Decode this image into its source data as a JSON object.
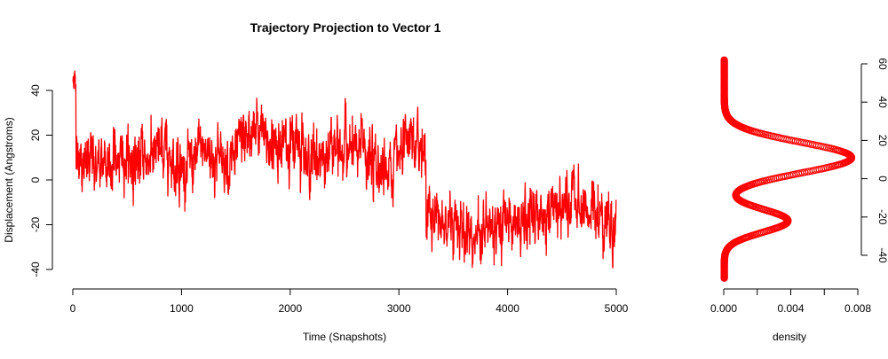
{
  "chart_data": [
    {
      "type": "line",
      "title": "Trajectory Projection to Vector 1",
      "xlabel": "Time (Snapshots)",
      "ylabel": "Displacement (Angstroms)",
      "xlim": [
        0,
        5000
      ],
      "ylim": [
        -40,
        40
      ],
      "xticks": [
        "0",
        "1000",
        "2000",
        "3000",
        "4000",
        "5000"
      ],
      "yticks": [
        "-40",
        "-20",
        "0",
        "20",
        "40"
      ],
      "color": "#ff0000",
      "n_points": 5000,
      "segments": [
        {
          "from": 0,
          "to": 30,
          "mean": 45
        },
        {
          "from": 30,
          "to": 700,
          "mean": 9
        },
        {
          "from": 700,
          "to": 1500,
          "mean": 11
        },
        {
          "from": 1500,
          "to": 2700,
          "mean": 14
        },
        {
          "from": 2700,
          "to": 3250,
          "mean": 7
        },
        {
          "from": 3250,
          "to": 5000,
          "mean": -20
        }
      ],
      "noise_sd": 6.5,
      "grid": false
    },
    {
      "type": "line",
      "xlabel": "density",
      "xlim": [
        0,
        0.008
      ],
      "ylim": [
        -52,
        62
      ],
      "xticks": [
        "0.000",
        "0.004",
        "0.008"
      ],
      "yticks": [
        "-40",
        "-20",
        "0",
        "20",
        "40",
        "60"
      ],
      "color": "#ff0000",
      "peaks": [
        {
          "displacement": 11,
          "density": 0.0076,
          "sd": 8
        },
        {
          "displacement": -22,
          "density": 0.0038,
          "sd": 6
        }
      ],
      "grid": false
    }
  ]
}
